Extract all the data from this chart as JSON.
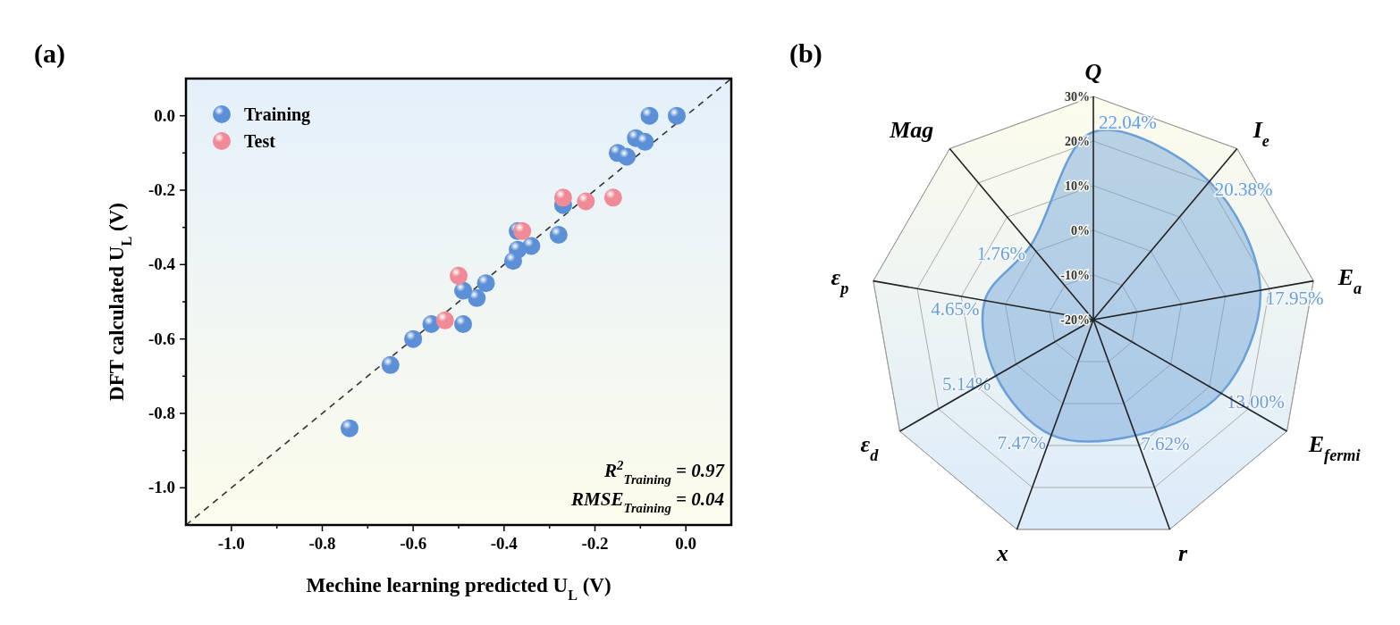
{
  "chart_data": [
    {
      "type": "scatter",
      "title": "(a)",
      "xlabel": "Mechine learning predicted U$_{L}$ (V)",
      "ylabel": "DFT calculated U$_{L}$ (V)",
      "xlim": [
        -1.1,
        0.1
      ],
      "ylim": [
        -1.1,
        0.1
      ],
      "xticks": [
        {
          "value": -1.0,
          "label": "-1.0"
        },
        {
          "value": -0.9,
          "label": null
        },
        {
          "value": -0.8,
          "label": "-0.8"
        },
        {
          "value": -0.7,
          "label": null
        },
        {
          "value": -0.6,
          "label": "-0.6"
        },
        {
          "value": -0.5,
          "label": null
        },
        {
          "value": -0.4,
          "label": "-0.4"
        },
        {
          "value": -0.3,
          "label": null
        },
        {
          "value": -0.2,
          "label": "-0.2"
        },
        {
          "value": -0.1,
          "label": null
        },
        {
          "value": 0.0,
          "label": "0.0"
        }
      ],
      "yticks": [
        {
          "value": -1.0,
          "label": "-1.0"
        },
        {
          "value": -0.9,
          "label": null
        },
        {
          "value": -0.8,
          "label": "-0.8"
        },
        {
          "value": -0.7,
          "label": null
        },
        {
          "value": -0.6,
          "label": "-0.6"
        },
        {
          "value": -0.5,
          "label": null
        },
        {
          "value": -0.4,
          "label": "-0.4"
        },
        {
          "value": -0.3,
          "label": null
        },
        {
          "value": -0.2,
          "label": "-0.2"
        },
        {
          "value": -0.1,
          "label": null
        },
        {
          "value": 0.0,
          "label": "0.0"
        }
      ],
      "legend": "top left",
      "marker": "circle",
      "grid": false,
      "series": [
        {
          "type": "line",
          "color": "#333333",
          "line_style": "dashed",
          "marker": "none",
          "x": [
            -1.1,
            0.1
          ],
          "values": [
            -1.1,
            0.1
          ]
        },
        {
          "name": "Training",
          "color": "#5b8fd6",
          "x": [
            -0.08,
            -0.02,
            -0.11,
            -0.09,
            -0.15,
            -0.13,
            -0.27,
            -0.37,
            -0.28,
            -0.37,
            -0.34,
            -0.38,
            -0.44,
            -0.46,
            -0.49,
            -0.56,
            -0.49,
            -0.6,
            -0.65,
            -0.74
          ],
          "values": [
            0.0,
            0.0,
            -0.06,
            -0.07,
            -0.1,
            -0.11,
            -0.24,
            -0.31,
            -0.32,
            -0.36,
            -0.35,
            -0.39,
            -0.45,
            -0.49,
            -0.47,
            -0.56,
            -0.56,
            -0.6,
            -0.67,
            -0.84
          ]
        },
        {
          "name": "Test",
          "color": "#ef8a96",
          "x": [
            -0.27,
            -0.22,
            -0.16,
            -0.36,
            -0.5,
            -0.53
          ],
          "values": [
            -0.22,
            -0.23,
            -0.22,
            -0.31,
            -0.43,
            -0.55
          ]
        }
      ],
      "annotations": [
        "R$^{2}$$_{Training}$ = 0.97",
        "RMSE$_{Training}$ = 0.04"
      ]
    },
    {
      "type": "radar",
      "title": "(b)",
      "categories": [
        "Q",
        "I$_{e}$",
        "E$_{a}$",
        "E$_{fermi}$",
        "r",
        "x",
        "ε$_{d}$",
        "ε$_{p}$",
        "Mag"
      ],
      "ylim": [
        -20,
        30
      ],
      "yticks": [
        {
          "value": -20,
          "label": "-20%"
        },
        {
          "value": -10,
          "label": "-10%"
        },
        {
          "value": 0,
          "label": "0%"
        },
        {
          "value": 10,
          "label": "10%"
        },
        {
          "value": 20,
          "label": "20%"
        },
        {
          "value": 30,
          "label": "30%"
        }
      ],
      "grid": true,
      "series": [
        {
          "color": "#6a9fd8",
          "values": [
            22.04,
            20.38,
            17.95,
            13.0,
            7.62,
            7.47,
            5.14,
            4.65,
            1.76
          ],
          "value_labels": [
            "22.04%",
            "20.38%",
            "17.95%",
            "13.00%",
            "7.62%",
            "7.47%",
            "5.14%",
            "4.65%",
            "1.76%"
          ]
        }
      ]
    }
  ]
}
